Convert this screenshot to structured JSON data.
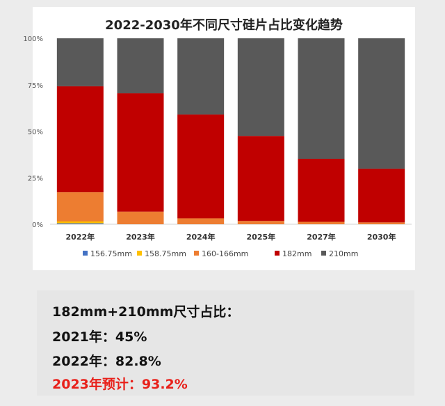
{
  "chart_data": {
    "type": "bar",
    "stacked": true,
    "title": "2022-2030年不同尺寸硅片占比变化趋势",
    "categories": [
      "2022年",
      "2023年",
      "2024年",
      "2025年",
      "2027年",
      "2030年"
    ],
    "ylim": [
      0,
      100
    ],
    "yticks": [
      "0%",
      "25%",
      "50%",
      "75%",
      "100%"
    ],
    "grid": false,
    "legend_position": "bottom",
    "series": [
      {
        "name": "156.75mm",
        "color": "#4472c4",
        "values": [
          0.5,
          0,
          0,
          0,
          0,
          0
        ]
      },
      {
        "name": "158.75mm",
        "color": "#ffc000",
        "values": [
          1.0,
          0,
          0,
          0,
          0,
          0
        ]
      },
      {
        "name": "160-166mm",
        "color": "#ed7d31",
        "values": [
          15.7,
          6.8,
          3.2,
          1.8,
          1.3,
          1.0
        ]
      },
      {
        "name": "182mm",
        "color": "#c00000",
        "values": [
          57.0,
          63.6,
          55.8,
          45.7,
          33.9,
          28.8
        ]
      },
      {
        "name": "210mm",
        "color": "#595959",
        "values": [
          25.8,
          29.6,
          41.0,
          52.5,
          64.8,
          70.2
        ]
      }
    ]
  },
  "summary": {
    "heading": "182mm+210mm尺寸占比：",
    "line_2021": "2021年：45%",
    "line_2022": "2022年：82.8%",
    "line_2023": "2023年预计：93.2%"
  }
}
